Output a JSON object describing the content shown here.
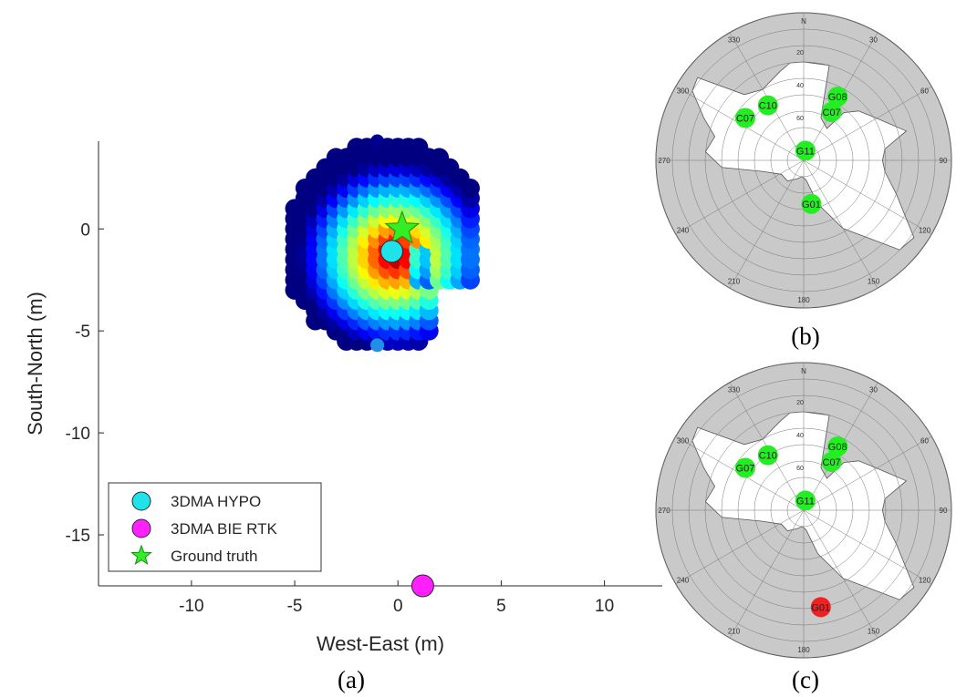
{
  "panel_labels": {
    "a": "(a)",
    "b": "(b)",
    "c": "(c)"
  },
  "chart_data": [
    {
      "type": "scatter",
      "panel": "(a)",
      "xlabel": "West-East (m)",
      "ylabel": "South-North (m)",
      "xlim": [
        -14.5,
        12.8
      ],
      "ylim": [
        -17.5,
        4.3
      ],
      "xticks": [
        -10,
        -5,
        0,
        5,
        10
      ],
      "yticks": [
        0,
        -5,
        -10,
        -15
      ],
      "grid": false,
      "legend_position": "bottom-left",
      "heatmap_grid": {
        "x_min": -5,
        "x_max": 3.5,
        "y_min": -5.5,
        "y_max": 4,
        "step": 0.5,
        "outliers": [
          [
            -1,
            4.3
          ],
          [
            -1,
            -5.7
          ]
        ]
      },
      "series": [
        {
          "name": "3DMA HYPO",
          "marker": "circle",
          "color": "#1fe3ea",
          "x": [
            -0.3
          ],
          "y": [
            -1.1
          ]
        },
        {
          "name": "3DMA BIE RTK",
          "marker": "circle",
          "color": "#ff1fff",
          "x": [
            1.2
          ],
          "y": [
            -17.5
          ]
        },
        {
          "name": "Ground truth",
          "marker": "star",
          "color": "#33ee22",
          "x": [
            0.2
          ],
          "y": [
            0
          ]
        }
      ]
    },
    {
      "type": "skyplot",
      "panel": "(b)",
      "azimuth_labels": [
        "N",
        "30",
        "60",
        "90",
        "120",
        "150",
        "180",
        "210",
        "240",
        "270",
        "300",
        "330"
      ],
      "elevation_labels": [
        "20",
        "40",
        "60",
        "80"
      ],
      "satellites": [
        {
          "id": "G08",
          "az": 28,
          "el": 46,
          "color": "#22ee22"
        },
        {
          "id": "C07",
          "az": 30,
          "el": 56,
          "color": "#22ee22"
        },
        {
          "id": "C10",
          "az": 327,
          "el": 50,
          "color": "#22ee22"
        },
        {
          "id": "C07",
          "az": 306,
          "el": 46,
          "color": "#22ee22"
        },
        {
          "id": "G11",
          "az": 10,
          "el": 84,
          "color": "#22ee22"
        },
        {
          "id": "G01",
          "az": 170,
          "el": 63,
          "color": "#22ee22"
        }
      ]
    },
    {
      "type": "skyplot",
      "panel": "(c)",
      "azimuth_labels": [
        "N",
        "30",
        "60",
        "90",
        "120",
        "150",
        "180",
        "210",
        "240",
        "270",
        "300",
        "330"
      ],
      "elevation_labels": [
        "20",
        "40",
        "60",
        "80"
      ],
      "satellites": [
        {
          "id": "G08",
          "az": 28,
          "el": 46,
          "color": "#22ee22"
        },
        {
          "id": "C07",
          "az": 30,
          "el": 56,
          "color": "#22ee22"
        },
        {
          "id": "C10",
          "az": 327,
          "el": 50,
          "color": "#22ee22"
        },
        {
          "id": "G07",
          "az": 306,
          "el": 46,
          "color": "#22ee22"
        },
        {
          "id": "G11",
          "az": 10,
          "el": 84,
          "color": "#22ee22"
        },
        {
          "id": "G01",
          "az": 170,
          "el": 30,
          "color": "#ee2222"
        }
      ]
    }
  ]
}
